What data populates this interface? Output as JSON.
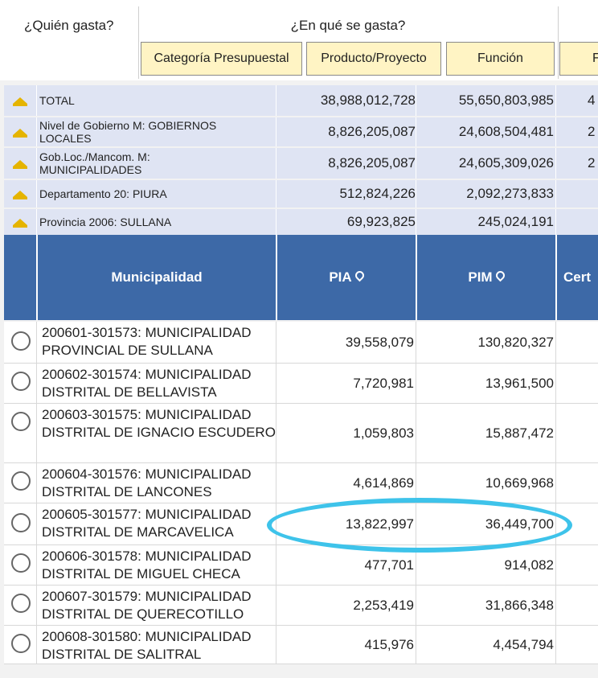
{
  "header": {
    "who_label": "¿Quién gasta?",
    "what_label": "¿En qué se gasta?",
    "buttons": [
      "Categoría Presupuestal",
      "Producto/Proyecto",
      "Función",
      "F"
    ]
  },
  "summary_rows": [
    {
      "label": "TOTAL",
      "pia": "38,988,012,728",
      "pim": "55,650,803,985",
      "extra": "4"
    },
    {
      "label": "Nivel de Gobierno M: GOBIERNOS LOCALES",
      "pia": "8,826,205,087",
      "pim": "24,608,504,481",
      "extra": "2"
    },
    {
      "label": "Gob.Loc./Mancom. M: MUNICIPALIDADES",
      "pia": "8,826,205,087",
      "pim": "24,605,309,026",
      "extra": "2"
    },
    {
      "label": "Departamento 20: PIURA",
      "pia": "512,824,226",
      "pim": "2,092,273,833",
      "extra": ""
    },
    {
      "label": "Provincia 2006: SULLANA",
      "pia": "69,923,825",
      "pim": "245,024,191",
      "extra": ""
    }
  ],
  "table": {
    "headers": [
      "Municipalidad",
      "PIA",
      "PIM",
      "Cert"
    ],
    "rows": [
      {
        "name": "200601-301573: MUNICIPALIDAD PROVINCIAL DE SULLANA",
        "pia": "39,558,079",
        "pim": "130,820,327"
      },
      {
        "name": "200602-301574: MUNICIPALIDAD DISTRITAL DE BELLAVISTA",
        "pia": "7,720,981",
        "pim": "13,961,500"
      },
      {
        "name": "200603-301575: MUNICIPALIDAD DISTRITAL DE IGNACIO ESCUDERO",
        "pia": "1,059,803",
        "pim": "15,887,472"
      },
      {
        "name": "200604-301576: MUNICIPALIDAD DISTRITAL DE LANCONES",
        "pia": "4,614,869",
        "pim": "10,669,968"
      },
      {
        "name": "200605-301577: MUNICIPALIDAD DISTRITAL DE MARCAVELICA",
        "pia": "13,822,997",
        "pim": "36,449,700"
      },
      {
        "name": "200606-301578: MUNICIPALIDAD DISTRITAL DE MIGUEL CHECA",
        "pia": "477,701",
        "pim": "914,082"
      },
      {
        "name": "200607-301579: MUNICIPALIDAD DISTRITAL DE QUERECOTILLO",
        "pia": "2,253,419",
        "pim": "31,866,348"
      },
      {
        "name": "200608-301580: MUNICIPALIDAD DISTRITAL DE SALITRAL",
        "pia": "415,976",
        "pim": "4,454,794"
      }
    ]
  },
  "colors": {
    "header_blue": "#3d69a7",
    "summary_bg": "#dfe4f3",
    "button_bg": "#fff4c4",
    "highlight": "#3ec3ea",
    "arrow": "#e5b400"
  }
}
